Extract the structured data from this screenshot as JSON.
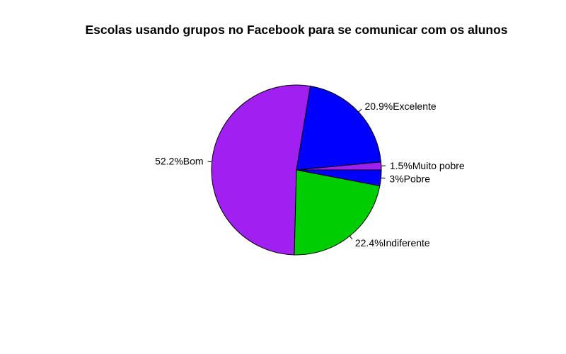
{
  "chart_data": {
    "type": "pie",
    "title": "Escolas usando grupos no Facebook para se comunicar com os alunos",
    "slices": [
      {
        "label": "Muito pobre",
        "percent_text": "1.5%",
        "value": 1.5,
        "color": "#A020F0"
      },
      {
        "label": "Excelente",
        "percent_text": "20.9%",
        "value": 20.9,
        "color": "#0000FF"
      },
      {
        "label": "Bom",
        "percent_text": "52.2%",
        "value": 52.2,
        "color": "#A020F0"
      },
      {
        "label": "Indiferente",
        "percent_text": "22.4%",
        "value": 22.4,
        "color": "#00CD00"
      },
      {
        "label": "Pobre",
        "percent_text": "3%",
        "value": 3.0,
        "color": "#0000FF"
      }
    ],
    "start_angle_deg": 0,
    "direction": "counterclockwise",
    "legend": "none",
    "grid": false
  }
}
